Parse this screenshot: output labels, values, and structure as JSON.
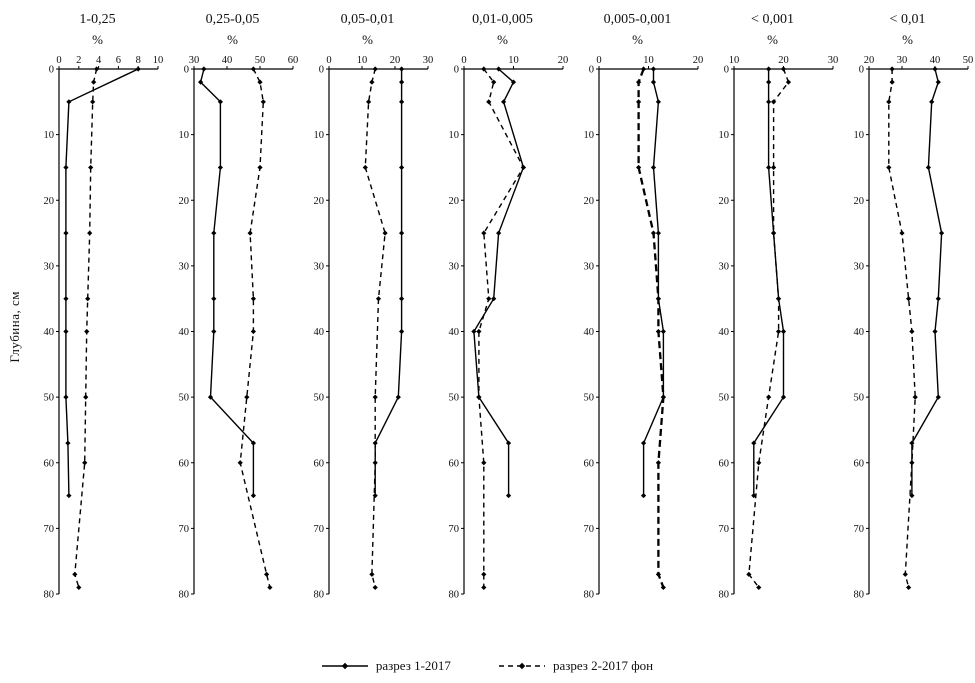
{
  "ylabel": "Глубина, см",
  "legend": [
    {
      "label": "разрез 1-2017",
      "style": "solid"
    },
    {
      "label": "разрез 2-2017 фон",
      "style": "dashed"
    }
  ],
  "chart_data": [
    {
      "type": "line",
      "title": "1-0,25",
      "xlabel": "%",
      "xlim": [
        0,
        10
      ],
      "xticks": [
        0,
        2,
        4,
        6,
        8,
        10
      ],
      "ylim": [
        0,
        80
      ],
      "yticks": [
        0,
        10,
        20,
        30,
        40,
        50,
        60,
        70,
        80
      ],
      "y_direction": "down",
      "series": [
        {
          "name": "разрез 1-2017",
          "dash": false,
          "points": [
            [
              8,
              0
            ],
            [
              1,
              5
            ],
            [
              0.7,
              15
            ],
            [
              0.7,
              25
            ],
            [
              0.7,
              35
            ],
            [
              0.7,
              40
            ],
            [
              0.7,
              50
            ],
            [
              0.9,
              57
            ],
            [
              1,
              65
            ]
          ]
        },
        {
          "name": "разрез 2-2017 фон",
          "dash": true,
          "points": [
            [
              3.8,
              0
            ],
            [
              3.5,
              2
            ],
            [
              3.4,
              5
            ],
            [
              3.2,
              15
            ],
            [
              3.1,
              25
            ],
            [
              2.9,
              35
            ],
            [
              2.8,
              40
            ],
            [
              2.7,
              50
            ],
            [
              2.6,
              60
            ],
            [
              1.6,
              77
            ],
            [
              2,
              79
            ]
          ]
        }
      ]
    },
    {
      "type": "line",
      "title": "0,25-0,05",
      "xlabel": "%",
      "xlim": [
        30,
        60
      ],
      "xticks": [
        30,
        40,
        50,
        60
      ],
      "ylim": [
        0,
        80
      ],
      "yticks": [
        0,
        10,
        20,
        30,
        40,
        50,
        60,
        70,
        80
      ],
      "y_direction": "down",
      "series": [
        {
          "name": "разрез 1-2017",
          "dash": false,
          "points": [
            [
              33,
              0
            ],
            [
              32,
              2
            ],
            [
              38,
              5
            ],
            [
              38,
              15
            ],
            [
              36,
              25
            ],
            [
              36,
              35
            ],
            [
              36,
              40
            ],
            [
              35,
              50
            ],
            [
              48,
              57
            ],
            [
              48,
              65
            ]
          ]
        },
        {
          "name": "разрез 2-2017 фон",
          "dash": true,
          "points": [
            [
              48,
              0
            ],
            [
              50,
              2
            ],
            [
              51,
              5
            ],
            [
              50,
              15
            ],
            [
              47,
              25
            ],
            [
              48,
              35
            ],
            [
              48,
              40
            ],
            [
              46,
              50
            ],
            [
              44,
              60
            ],
            [
              52,
              77
            ],
            [
              53,
              79
            ]
          ]
        }
      ]
    },
    {
      "type": "line",
      "title": "0,05-0,01",
      "xlabel": "%",
      "xlim": [
        0,
        30
      ],
      "xticks": [
        0,
        10,
        20,
        30
      ],
      "ylim": [
        0,
        80
      ],
      "yticks": [
        0,
        10,
        20,
        30,
        40,
        50,
        60,
        70,
        80
      ],
      "y_direction": "down",
      "series": [
        {
          "name": "разрез 1-2017",
          "dash": false,
          "points": [
            [
              22,
              0
            ],
            [
              22,
              2
            ],
            [
              22,
              5
            ],
            [
              22,
              15
            ],
            [
              22,
              25
            ],
            [
              22,
              35
            ],
            [
              22,
              40
            ],
            [
              21,
              50
            ],
            [
              14,
              57
            ],
            [
              14,
              65
            ]
          ]
        },
        {
          "name": "разрез 2-2017 фон",
          "dash": true,
          "points": [
            [
              14,
              0
            ],
            [
              13,
              2
            ],
            [
              12,
              5
            ],
            [
              11,
              15
            ],
            [
              17,
              25
            ],
            [
              15,
              35
            ],
            [
              14,
              50
            ],
            [
              14,
              60
            ],
            [
              13,
              77
            ],
            [
              14,
              79
            ]
          ]
        }
      ]
    },
    {
      "type": "line",
      "title": "0,01-0,005",
      "xlabel": "%",
      "xlim": [
        0,
        20
      ],
      "xticks": [
        0,
        10,
        20
      ],
      "ylim": [
        0,
        80
      ],
      "yticks": [
        0,
        10,
        20,
        30,
        40,
        50,
        60,
        70,
        80
      ],
      "y_direction": "down",
      "series": [
        {
          "name": "разрез 1-2017",
          "dash": false,
          "points": [
            [
              7,
              0
            ],
            [
              10,
              2
            ],
            [
              8,
              5
            ],
            [
              12,
              15
            ],
            [
              7,
              25
            ],
            [
              6,
              35
            ],
            [
              2,
              40
            ],
            [
              3,
              50
            ],
            [
              9,
              57
            ],
            [
              9,
              65
            ]
          ]
        },
        {
          "name": "разрез 2-2017 фон",
          "dash": true,
          "points": [
            [
              4,
              0
            ],
            [
              6,
              2
            ],
            [
              5,
              5
            ],
            [
              12,
              15
            ],
            [
              4,
              25
            ],
            [
              5,
              35
            ],
            [
              3,
              40
            ],
            [
              3,
              50
            ],
            [
              4,
              60
            ],
            [
              4,
              77
            ],
            [
              4,
              79
            ]
          ]
        }
      ]
    },
    {
      "type": "line",
      "title": "0,005-0,001",
      "xlabel": "%",
      "xlim": [
        0,
        20
      ],
      "xticks": [
        0,
        10,
        20
      ],
      "ylim": [
        0,
        80
      ],
      "yticks": [
        0,
        10,
        20,
        30,
        40,
        50,
        60,
        70,
        80
      ],
      "y_direction": "down",
      "series": [
        {
          "name": "разрез 1-2017",
          "dash": false,
          "points": [
            [
              11,
              0
            ],
            [
              11,
              2
            ],
            [
              12,
              5
            ],
            [
              11,
              15
            ],
            [
              12,
              25
            ],
            [
              12,
              35
            ],
            [
              13,
              40
            ],
            [
              13,
              50
            ],
            [
              9,
              57
            ],
            [
              9,
              65
            ]
          ]
        },
        {
          "name": "разрез 2-2017 фон",
          "dash": true,
          "thick": true,
          "points": [
            [
              9,
              0
            ],
            [
              8,
              2
            ],
            [
              8,
              5
            ],
            [
              8,
              15
            ],
            [
              11,
              25
            ],
            [
              12,
              35
            ],
            [
              12,
              40
            ],
            [
              13,
              50
            ],
            [
              12,
              60
            ],
            [
              12,
              77
            ],
            [
              13,
              79
            ]
          ]
        }
      ]
    },
    {
      "type": "line",
      "title": "< 0,001",
      "xlabel": "%",
      "xlim": [
        10,
        30
      ],
      "xticks": [
        10,
        20,
        30
      ],
      "ylim": [
        0,
        80
      ],
      "yticks": [
        0,
        10,
        20,
        30,
        40,
        50,
        60,
        70,
        80
      ],
      "y_direction": "down",
      "series": [
        {
          "name": "разрез 1-2017",
          "dash": false,
          "points": [
            [
              17,
              0
            ],
            [
              17,
              2
            ],
            [
              17,
              5
            ],
            [
              17,
              15
            ],
            [
              18,
              25
            ],
            [
              19,
              35
            ],
            [
              20,
              40
            ],
            [
              20,
              50
            ],
            [
              14,
              57
            ],
            [
              14,
              65
            ]
          ]
        },
        {
          "name": "разрез 2-2017 фон",
          "dash": true,
          "points": [
            [
              20,
              0
            ],
            [
              21,
              2
            ],
            [
              18,
              5
            ],
            [
              18,
              15
            ],
            [
              18,
              25
            ],
            [
              19,
              35
            ],
            [
              19,
              40
            ],
            [
              17,
              50
            ],
            [
              15,
              60
            ],
            [
              13,
              77
            ],
            [
              15,
              79
            ]
          ]
        }
      ]
    },
    {
      "type": "line",
      "title": "< 0,01",
      "xlabel": "%",
      "xlim": [
        20,
        50
      ],
      "xticks": [
        20,
        30,
        40,
        50
      ],
      "ylim": [
        0,
        80
      ],
      "yticks": [
        0,
        10,
        20,
        30,
        40,
        50,
        60,
        70,
        80
      ],
      "y_direction": "down",
      "series": [
        {
          "name": "разрез 1-2017",
          "dash": false,
          "points": [
            [
              40,
              0
            ],
            [
              41,
              2
            ],
            [
              39,
              5
            ],
            [
              38,
              15
            ],
            [
              42,
              25
            ],
            [
              41,
              35
            ],
            [
              40,
              40
            ],
            [
              41,
              50
            ],
            [
              33,
              57
            ],
            [
              33,
              65
            ]
          ]
        },
        {
          "name": "разрез 2-2017 фон",
          "dash": true,
          "points": [
            [
              27,
              0
            ],
            [
              27,
              2
            ],
            [
              26,
              5
            ],
            [
              26,
              15
            ],
            [
              30,
              25
            ],
            [
              32,
              35
            ],
            [
              33,
              40
            ],
            [
              34,
              50
            ],
            [
              33,
              60
            ],
            [
              31,
              77
            ],
            [
              32,
              79
            ]
          ]
        }
      ]
    }
  ]
}
